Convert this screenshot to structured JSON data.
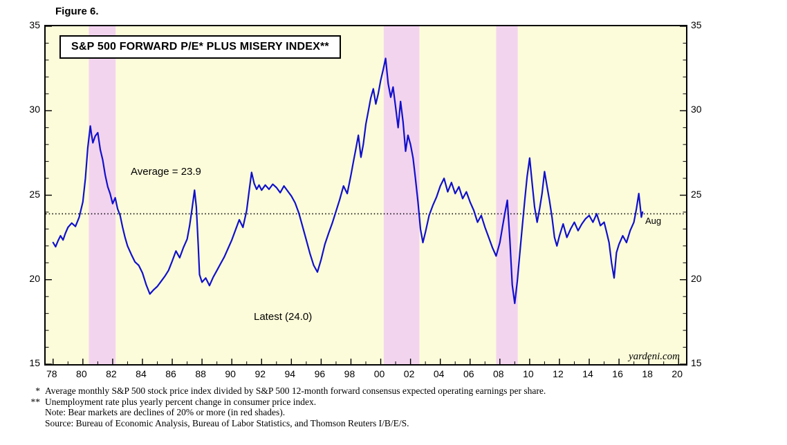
{
  "figure_label": "Figure 6.",
  "chart_data": {
    "type": "line",
    "title": "S&P 500 FORWARD P/E* PLUS MISERY INDEX**",
    "watermark": "yardeni.com",
    "x_axis": {
      "min": 1977.5,
      "max": 2020.5,
      "tick_years": [
        1978,
        1980,
        1982,
        1984,
        1986,
        1988,
        1990,
        1992,
        1994,
        1996,
        1998,
        2000,
        2002,
        2004,
        2006,
        2008,
        2010,
        2012,
        2014,
        2016,
        2018,
        2020
      ],
      "tick_labels": [
        "78",
        "80",
        "82",
        "84",
        "86",
        "88",
        "90",
        "92",
        "94",
        "96",
        "98",
        "00",
        "02",
        "04",
        "06",
        "08",
        "10",
        "12",
        "14",
        "16",
        "18",
        "20"
      ],
      "minor_tick_step": 1
    },
    "y_axis": {
      "min": 15,
      "max": 35,
      "ticks": [
        15,
        20,
        25,
        30,
        35
      ],
      "minor_tick_step": 1
    },
    "grid": false,
    "legend": "none",
    "average_line": {
      "value": 23.9,
      "label": "Average = 23.9",
      "label_x": 1983.2,
      "label_y": 26.75
    },
    "latest_value": 24.0,
    "latest_label": {
      "text": "Latest (24.0)",
      "x": 1991.5,
      "y": 18.15
    },
    "aug_label": {
      "text": "Aug",
      "x": 2017.75,
      "y": 23.8
    },
    "bear_market_bands": [
      [
        1980.4,
        1982.2
      ],
      [
        2000.2,
        2002.6
      ],
      [
        2007.75,
        2009.2
      ]
    ],
    "colors": {
      "plot_bg": "#fcfcda",
      "band": "#f3d4ef",
      "line": "#1010cc",
      "axis": "#000000"
    },
    "series": [
      {
        "name": "S&P 500 forward P/E plus misery index",
        "color": "#1010cc",
        "points": [
          [
            1978.0,
            22.2
          ],
          [
            1978.17,
            21.95
          ],
          [
            1978.33,
            22.3
          ],
          [
            1978.5,
            22.6
          ],
          [
            1978.67,
            22.35
          ],
          [
            1978.83,
            22.75
          ],
          [
            1979.0,
            23.1
          ],
          [
            1979.25,
            23.35
          ],
          [
            1979.5,
            23.15
          ],
          [
            1979.75,
            23.7
          ],
          [
            1980.0,
            24.6
          ],
          [
            1980.17,
            26.0
          ],
          [
            1980.33,
            27.8
          ],
          [
            1980.5,
            29.1
          ],
          [
            1980.58,
            28.6
          ],
          [
            1980.67,
            28.1
          ],
          [
            1980.83,
            28.5
          ],
          [
            1981.0,
            28.7
          ],
          [
            1981.17,
            27.7
          ],
          [
            1981.33,
            27.1
          ],
          [
            1981.5,
            26.2
          ],
          [
            1981.67,
            25.5
          ],
          [
            1981.83,
            25.1
          ],
          [
            1982.0,
            24.5
          ],
          [
            1982.17,
            24.85
          ],
          [
            1982.33,
            24.2
          ],
          [
            1982.5,
            23.8
          ],
          [
            1982.67,
            23.1
          ],
          [
            1982.83,
            22.5
          ],
          [
            1983.0,
            22.0
          ],
          [
            1983.25,
            21.5
          ],
          [
            1983.5,
            21.05
          ],
          [
            1983.75,
            20.85
          ],
          [
            1984.0,
            20.4
          ],
          [
            1984.25,
            19.7
          ],
          [
            1984.5,
            19.15
          ],
          [
            1984.75,
            19.4
          ],
          [
            1985.0,
            19.6
          ],
          [
            1985.25,
            19.9
          ],
          [
            1985.5,
            20.2
          ],
          [
            1985.75,
            20.55
          ],
          [
            1986.0,
            21.1
          ],
          [
            1986.25,
            21.7
          ],
          [
            1986.5,
            21.3
          ],
          [
            1986.75,
            21.9
          ],
          [
            1987.0,
            22.4
          ],
          [
            1987.17,
            23.2
          ],
          [
            1987.33,
            24.2
          ],
          [
            1987.5,
            25.3
          ],
          [
            1987.62,
            24.3
          ],
          [
            1987.75,
            22.0
          ],
          [
            1987.83,
            20.3
          ],
          [
            1988.0,
            19.85
          ],
          [
            1988.25,
            20.1
          ],
          [
            1988.5,
            19.65
          ],
          [
            1988.75,
            20.15
          ],
          [
            1989.0,
            20.55
          ],
          [
            1989.25,
            20.95
          ],
          [
            1989.5,
            21.35
          ],
          [
            1989.75,
            21.85
          ],
          [
            1990.0,
            22.35
          ],
          [
            1990.25,
            22.95
          ],
          [
            1990.5,
            23.55
          ],
          [
            1990.75,
            23.1
          ],
          [
            1991.0,
            24.1
          ],
          [
            1991.17,
            25.3
          ],
          [
            1991.33,
            26.35
          ],
          [
            1991.5,
            25.7
          ],
          [
            1991.67,
            25.35
          ],
          [
            1991.83,
            25.6
          ],
          [
            1992.0,
            25.3
          ],
          [
            1992.25,
            25.6
          ],
          [
            1992.5,
            25.35
          ],
          [
            1992.75,
            25.65
          ],
          [
            1993.0,
            25.45
          ],
          [
            1993.25,
            25.15
          ],
          [
            1993.5,
            25.55
          ],
          [
            1993.75,
            25.25
          ],
          [
            1994.0,
            24.95
          ],
          [
            1994.25,
            24.55
          ],
          [
            1994.5,
            23.95
          ],
          [
            1994.75,
            23.15
          ],
          [
            1995.0,
            22.35
          ],
          [
            1995.25,
            21.55
          ],
          [
            1995.5,
            20.85
          ],
          [
            1995.75,
            20.45
          ],
          [
            1996.0,
            21.2
          ],
          [
            1996.25,
            22.1
          ],
          [
            1996.5,
            22.75
          ],
          [
            1996.75,
            23.35
          ],
          [
            1997.0,
            24.05
          ],
          [
            1997.25,
            24.75
          ],
          [
            1997.5,
            25.55
          ],
          [
            1997.75,
            25.1
          ],
          [
            1998.0,
            26.2
          ],
          [
            1998.17,
            27.0
          ],
          [
            1998.33,
            27.75
          ],
          [
            1998.5,
            28.55
          ],
          [
            1998.67,
            27.25
          ],
          [
            1998.83,
            28.0
          ],
          [
            1999.0,
            29.2
          ],
          [
            1999.17,
            30.0
          ],
          [
            1999.33,
            30.75
          ],
          [
            1999.5,
            31.3
          ],
          [
            1999.67,
            30.4
          ],
          [
            1999.83,
            31.0
          ],
          [
            2000.0,
            31.8
          ],
          [
            2000.17,
            32.45
          ],
          [
            2000.33,
            33.1
          ],
          [
            2000.5,
            31.6
          ],
          [
            2000.67,
            30.8
          ],
          [
            2000.83,
            31.4
          ],
          [
            2001.0,
            30.2
          ],
          [
            2001.17,
            29.0
          ],
          [
            2001.33,
            30.55
          ],
          [
            2001.5,
            29.35
          ],
          [
            2001.67,
            27.6
          ],
          [
            2001.83,
            28.55
          ],
          [
            2002.0,
            28.0
          ],
          [
            2002.17,
            27.2
          ],
          [
            2002.33,
            26.0
          ],
          [
            2002.5,
            24.6
          ],
          [
            2002.67,
            23.0
          ],
          [
            2002.83,
            22.2
          ],
          [
            2003.0,
            22.8
          ],
          [
            2003.25,
            23.8
          ],
          [
            2003.5,
            24.4
          ],
          [
            2003.75,
            24.9
          ],
          [
            2004.0,
            25.55
          ],
          [
            2004.25,
            26.0
          ],
          [
            2004.5,
            25.2
          ],
          [
            2004.75,
            25.75
          ],
          [
            2005.0,
            25.1
          ],
          [
            2005.25,
            25.5
          ],
          [
            2005.5,
            24.8
          ],
          [
            2005.75,
            25.2
          ],
          [
            2006.0,
            24.6
          ],
          [
            2006.25,
            24.1
          ],
          [
            2006.5,
            23.4
          ],
          [
            2006.75,
            23.8
          ],
          [
            2007.0,
            23.1
          ],
          [
            2007.25,
            22.5
          ],
          [
            2007.5,
            21.9
          ],
          [
            2007.75,
            21.4
          ],
          [
            2008.0,
            22.2
          ],
          [
            2008.17,
            23.1
          ],
          [
            2008.33,
            23.9
          ],
          [
            2008.5,
            24.7
          ],
          [
            2008.67,
            22.4
          ],
          [
            2008.83,
            19.7
          ],
          [
            2009.0,
            18.6
          ],
          [
            2009.17,
            19.9
          ],
          [
            2009.33,
            21.5
          ],
          [
            2009.5,
            23.1
          ],
          [
            2009.67,
            24.7
          ],
          [
            2009.83,
            26.1
          ],
          [
            2010.0,
            27.2
          ],
          [
            2010.17,
            25.7
          ],
          [
            2010.33,
            24.3
          ],
          [
            2010.5,
            23.4
          ],
          [
            2010.67,
            24.2
          ],
          [
            2010.83,
            25.1
          ],
          [
            2011.0,
            26.4
          ],
          [
            2011.17,
            25.5
          ],
          [
            2011.33,
            24.7
          ],
          [
            2011.5,
            23.7
          ],
          [
            2011.67,
            22.5
          ],
          [
            2011.83,
            22.0
          ],
          [
            2012.0,
            22.6
          ],
          [
            2012.25,
            23.3
          ],
          [
            2012.5,
            22.5
          ],
          [
            2012.75,
            23.0
          ],
          [
            2013.0,
            23.4
          ],
          [
            2013.25,
            22.9
          ],
          [
            2013.5,
            23.3
          ],
          [
            2013.75,
            23.6
          ],
          [
            2014.0,
            23.8
          ],
          [
            2014.25,
            23.4
          ],
          [
            2014.5,
            23.9
          ],
          [
            2014.75,
            23.2
          ],
          [
            2015.0,
            23.4
          ],
          [
            2015.17,
            22.8
          ],
          [
            2015.33,
            22.2
          ],
          [
            2015.5,
            21.0
          ],
          [
            2015.67,
            20.1
          ],
          [
            2015.83,
            21.6
          ],
          [
            2016.0,
            22.1
          ],
          [
            2016.25,
            22.6
          ],
          [
            2016.5,
            22.2
          ],
          [
            2016.75,
            22.9
          ],
          [
            2017.0,
            23.4
          ],
          [
            2017.17,
            24.2
          ],
          [
            2017.33,
            25.1
          ],
          [
            2017.5,
            23.7
          ],
          [
            2017.58,
            24.0
          ]
        ]
      }
    ]
  },
  "footnotes": [
    {
      "marker": "*",
      "text": "Average monthly S&P 500 stock price index divided by S&P 500 12-month forward consensus expected operating earnings per share."
    },
    {
      "marker": "**",
      "text": "Unemployment rate plus yearly percent change in consumer price index."
    },
    {
      "marker": "",
      "text": "Note: Bear markets are declines of 20% or more (in red shades)."
    },
    {
      "marker": "",
      "text": "Source: Bureau of Economic Analysis, Bureau of Labor Statistics, and Thomson Reuters I/B/E/S."
    }
  ]
}
